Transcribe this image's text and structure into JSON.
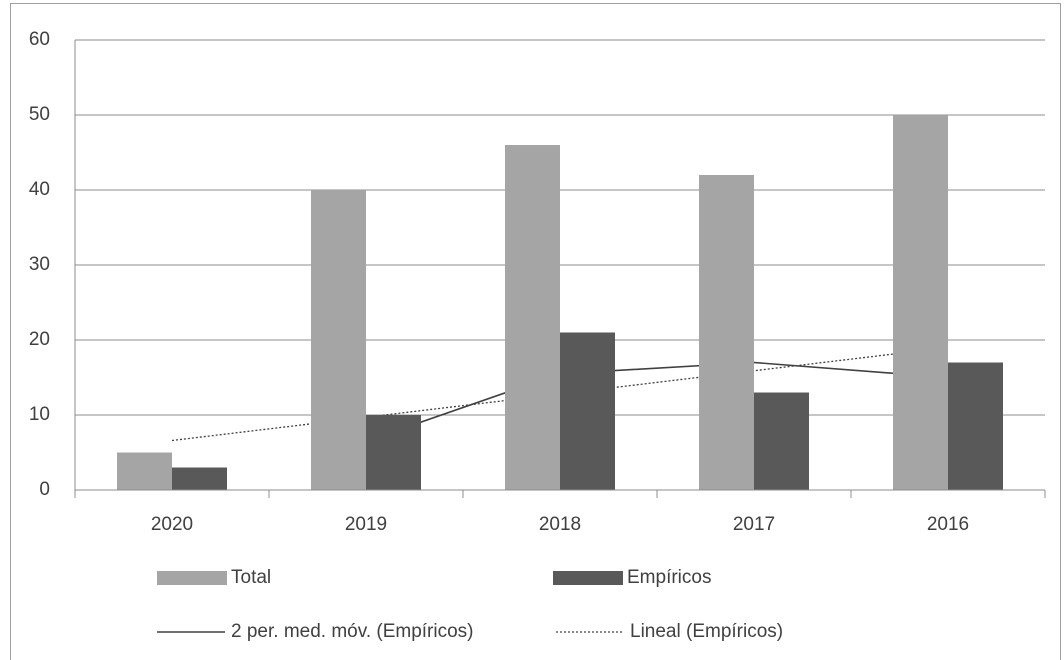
{
  "chart_data": {
    "type": "bar",
    "categories": [
      "2020",
      "2019",
      "2018",
      "2017",
      "2016"
    ],
    "series": [
      {
        "name": "Total",
        "type": "bar",
        "color": "#a5a5a5",
        "values": [
          5,
          40,
          46,
          42,
          50
        ]
      },
      {
        "name": "Empíricos",
        "type": "bar",
        "color": "#595959",
        "values": [
          3,
          10,
          21,
          13,
          17
        ]
      },
      {
        "name": "2 per. med. móv. (Empíricos)",
        "type": "line",
        "style": "solid",
        "color": "#404040",
        "values": [
          null,
          6.5,
          15.5,
          17,
          15
        ]
      },
      {
        "name": "Lineal (Empíricos)",
        "type": "line",
        "style": "dotted",
        "color": "#404040",
        "values": [
          6.6,
          9.7,
          12.8,
          15.9,
          19.0
        ]
      }
    ],
    "ylim": [
      0,
      60
    ],
    "yticks": [
      0,
      10,
      20,
      30,
      40,
      50,
      60
    ],
    "grid": true,
    "legend": "bottom"
  }
}
